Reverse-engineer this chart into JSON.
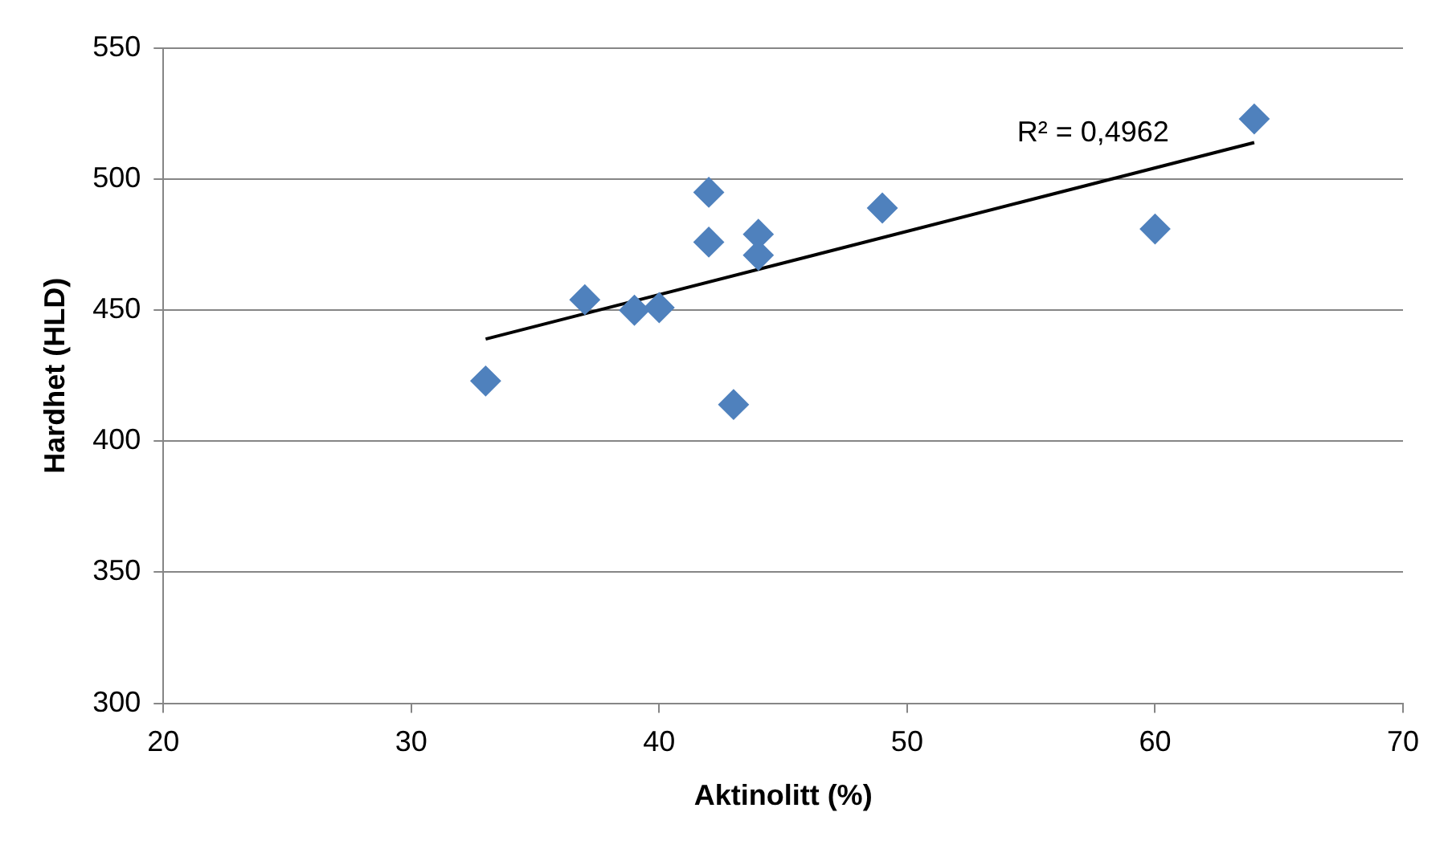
{
  "chart_data": {
    "type": "scatter",
    "xlabel": "Aktinolitt (%)",
    "ylabel": "Hardhet (HLD)",
    "xlim": [
      20,
      70
    ],
    "xticks": [
      20,
      30,
      40,
      50,
      60,
      70
    ],
    "ylim": [
      300,
      550
    ],
    "yticks": [
      300,
      350,
      400,
      450,
      500,
      550
    ],
    "grid": "y",
    "legend": false,
    "marker": "diamond",
    "series": [
      {
        "color": "#4f81bd",
        "x": [
          33,
          37,
          39,
          40,
          42,
          42,
          43,
          44,
          44,
          49,
          60,
          64
        ],
        "values": [
          423,
          454,
          450,
          451,
          495,
          476,
          414,
          479,
          471,
          489,
          481,
          523
        ]
      },
      {
        "type": "line",
        "color": "#000000",
        "marker": "none",
        "x": [
          33,
          64
        ],
        "values": [
          439,
          514
        ]
      }
    ],
    "annotations": [
      "R² = 0,4962"
    ]
  }
}
